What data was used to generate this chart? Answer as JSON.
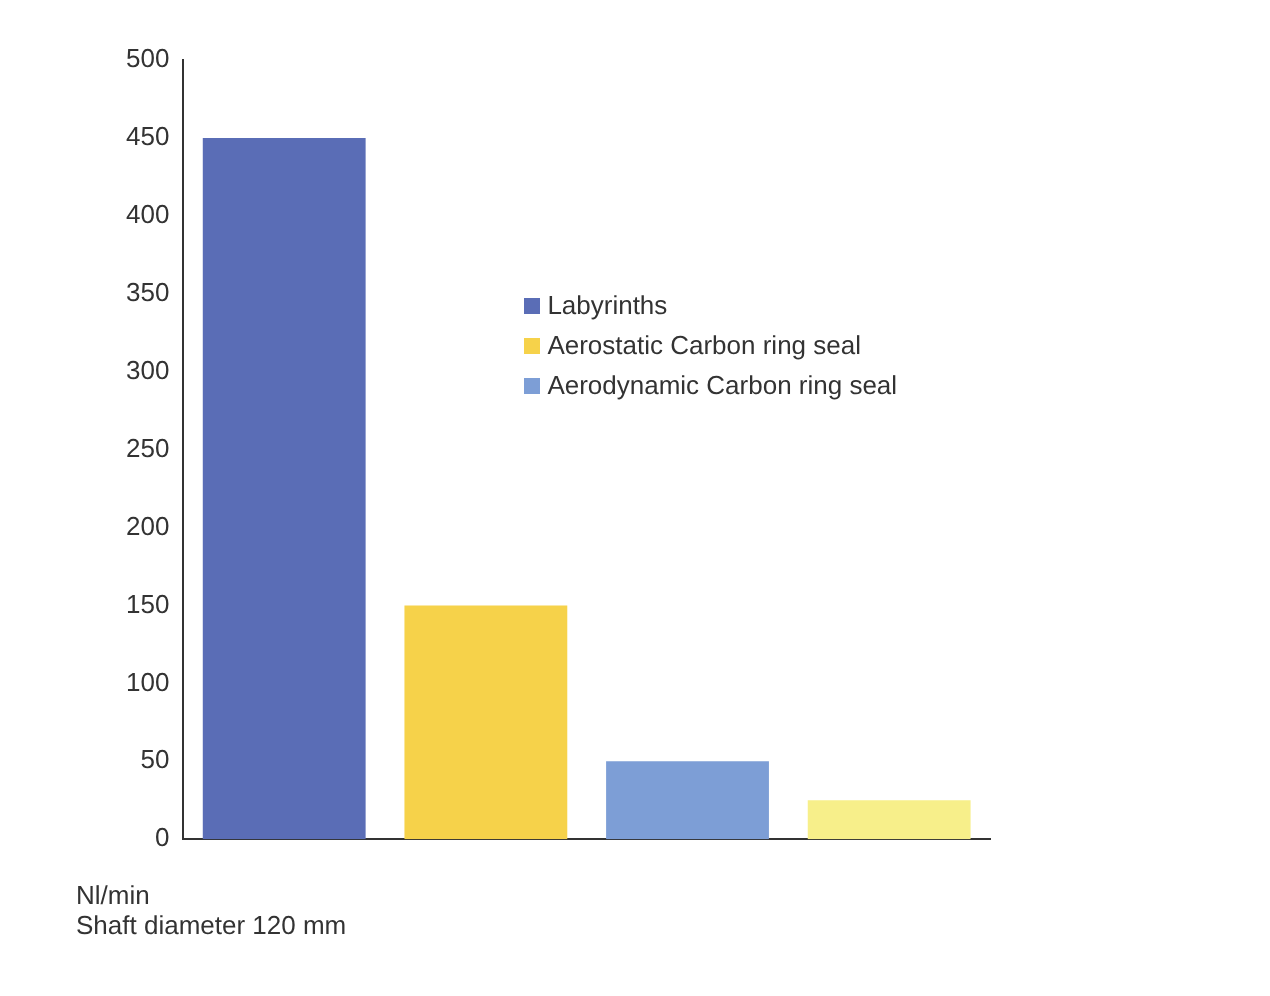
{
  "chart_data": {
    "type": "bar",
    "categories": [
      null,
      null,
      null,
      null
    ],
    "series": [
      {
        "name": "Labyrinths",
        "color": "#5a6db6",
        "values": [
          450,
          null,
          null,
          null
        ]
      },
      {
        "name": "Aerostatic Carbon ring seal",
        "color": "#f6d24a",
        "values": [
          null,
          150,
          null,
          null
        ]
      },
      {
        "name": "Aerodynamic Carbon ring seal",
        "color": "#7d9ed6",
        "values": [
          null,
          null,
          50,
          null
        ]
      },
      {
        "color": "#f7ef8a",
        "values": [
          null,
          null,
          null,
          25
        ]
      }
    ],
    "ylim": [
      0,
      500
    ],
    "yticks": [
      0,
      50,
      100,
      150,
      200,
      250,
      300,
      350,
      400,
      450,
      500
    ],
    "grid": false,
    "legend": "top right",
    "annotations": [
      "Nl/min",
      "Shaft diameter 120 mm"
    ]
  }
}
